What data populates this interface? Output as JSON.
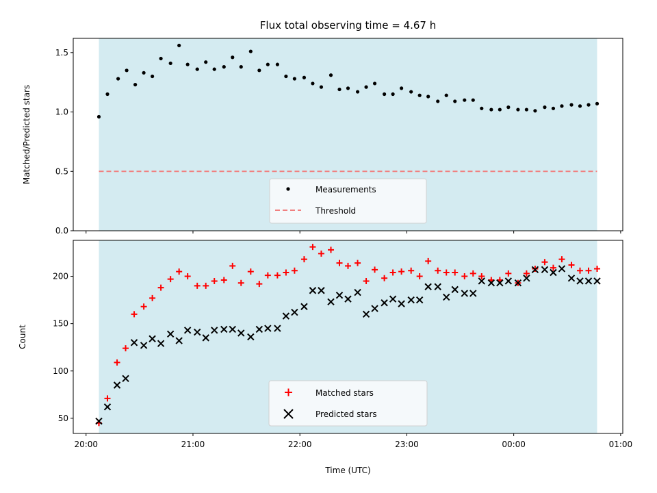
{
  "chart_data": [
    {
      "type": "scatter",
      "title": "Flux total observing time = 4.67 h",
      "xlabel": "",
      "ylabel": "Matched/Predicted stars",
      "x_unit": "hours_utc_from_20:00",
      "xlim": [
        -0.12,
        5.02
      ],
      "ylim": [
        0.0,
        1.62
      ],
      "yticks": [
        0.0,
        0.5,
        1.0,
        1.5
      ],
      "ytick_labels": [
        "0.0",
        "0.5",
        "1.0",
        "1.5"
      ],
      "xticks": [
        0,
        1,
        2,
        3,
        4,
        5
      ],
      "shaded_span": [
        0.12,
        4.78
      ],
      "shaded_color": "#d4ebf1",
      "threshold": {
        "value": 0.5,
        "name": "Threshold",
        "color": "#f08080"
      },
      "legend_position": "lower-center",
      "series": [
        {
          "name": "Measurements",
          "marker": "dot",
          "color": "#000000",
          "x": [
            0.12,
            0.2,
            0.3,
            0.38,
            0.46,
            0.54,
            0.62,
            0.7,
            0.79,
            0.87,
            0.95,
            1.04,
            1.12,
            1.2,
            1.29,
            1.37,
            1.45,
            1.54,
            1.62,
            1.7,
            1.79,
            1.87,
            1.95,
            2.04,
            2.12,
            2.2,
            2.29,
            2.37,
            2.45,
            2.54,
            2.62,
            2.7,
            2.79,
            2.87,
            2.95,
            3.04,
            3.12,
            3.2,
            3.29,
            3.37,
            3.45,
            3.54,
            3.62,
            3.7,
            3.79,
            3.87,
            3.95,
            4.04,
            4.12,
            4.2,
            4.29,
            4.37,
            4.45,
            4.54,
            4.62,
            4.7,
            4.78
          ],
          "y": [
            0.96,
            1.15,
            1.28,
            1.35,
            1.23,
            1.33,
            1.3,
            1.45,
            1.41,
            1.56,
            1.4,
            1.36,
            1.42,
            1.36,
            1.38,
            1.46,
            1.38,
            1.51,
            1.35,
            1.4,
            1.4,
            1.3,
            1.28,
            1.29,
            1.24,
            1.21,
            1.31,
            1.19,
            1.2,
            1.17,
            1.21,
            1.24,
            1.15,
            1.15,
            1.2,
            1.17,
            1.14,
            1.13,
            1.09,
            1.14,
            1.09,
            1.1,
            1.1,
            1.03,
            1.02,
            1.02,
            1.04,
            1.02,
            1.02,
            1.01,
            1.04,
            1.03,
            1.05,
            1.06,
            1.05,
            1.06,
            1.07
          ]
        }
      ]
    },
    {
      "type": "scatter",
      "title": "",
      "xlabel": "Time (UTC)",
      "ylabel": "Count",
      "x_unit": "hours_utc_from_20:00",
      "xlim": [
        -0.12,
        5.02
      ],
      "ylim": [
        34,
        238
      ],
      "yticks": [
        50,
        100,
        150,
        200
      ],
      "ytick_labels": [
        "50",
        "100",
        "150",
        "200"
      ],
      "xticks": [
        0,
        1,
        2,
        3,
        4,
        5
      ],
      "xtick_labels": [
        "20:00",
        "21:00",
        "22:00",
        "23:00",
        "00:00",
        "01:00"
      ],
      "shaded_span": [
        0.12,
        4.78
      ],
      "shaded_color": "#d4ebf1",
      "legend_position": "lower-center",
      "series": [
        {
          "name": "Matched stars",
          "marker": "plus",
          "color": "#ff0000",
          "x": [
            0.12,
            0.2,
            0.29,
            0.37,
            0.45,
            0.54,
            0.62,
            0.7,
            0.79,
            0.87,
            0.95,
            1.04,
            1.12,
            1.2,
            1.29,
            1.37,
            1.45,
            1.54,
            1.62,
            1.7,
            1.79,
            1.87,
            1.95,
            2.04,
            2.12,
            2.2,
            2.29,
            2.37,
            2.45,
            2.54,
            2.62,
            2.7,
            2.79,
            2.87,
            2.95,
            3.04,
            3.12,
            3.2,
            3.29,
            3.37,
            3.45,
            3.54,
            3.62,
            3.7,
            3.79,
            3.87,
            3.95,
            4.04,
            4.12,
            4.2,
            4.29,
            4.37,
            4.45,
            4.54,
            4.62,
            4.7,
            4.78
          ],
          "y": [
            45,
            71,
            109,
            124,
            160,
            168,
            177,
            188,
            197,
            205,
            200,
            190,
            190,
            195,
            196,
            211,
            193,
            205,
            192,
            201,
            201,
            204,
            206,
            218,
            231,
            224,
            228,
            214,
            211,
            214,
            195,
            207,
            198,
            204,
            205,
            206,
            200,
            216,
            206,
            204,
            204,
            200,
            203,
            200,
            196,
            196,
            203,
            193,
            203,
            208,
            215,
            209,
            218,
            212,
            206,
            206,
            208
          ]
        },
        {
          "name": "Predicted stars",
          "marker": "x",
          "color": "#000000",
          "x": [
            0.12,
            0.2,
            0.29,
            0.37,
            0.45,
            0.54,
            0.62,
            0.7,
            0.79,
            0.87,
            0.95,
            1.04,
            1.12,
            1.2,
            1.29,
            1.37,
            1.45,
            1.54,
            1.62,
            1.7,
            1.79,
            1.87,
            1.95,
            2.04,
            2.12,
            2.2,
            2.29,
            2.37,
            2.45,
            2.54,
            2.62,
            2.7,
            2.79,
            2.87,
            2.95,
            3.04,
            3.12,
            3.2,
            3.29,
            3.37,
            3.45,
            3.54,
            3.62,
            3.7,
            3.79,
            3.87,
            3.95,
            4.04,
            4.12,
            4.2,
            4.29,
            4.37,
            4.45,
            4.54,
            4.62,
            4.7,
            4.78
          ],
          "y": [
            47,
            62,
            85,
            92,
            130,
            127,
            134,
            129,
            139,
            132,
            143,
            141,
            135,
            143,
            144,
            144,
            140,
            136,
            144,
            145,
            145,
            158,
            162,
            168,
            185,
            185,
            173,
            180,
            176,
            183,
            160,
            166,
            172,
            176,
            171,
            175,
            175,
            189,
            189,
            178,
            186,
            182,
            182,
            195,
            193,
            193,
            195,
            193,
            198,
            207,
            207,
            204,
            208,
            198,
            195,
            195,
            195
          ]
        }
      ]
    }
  ]
}
